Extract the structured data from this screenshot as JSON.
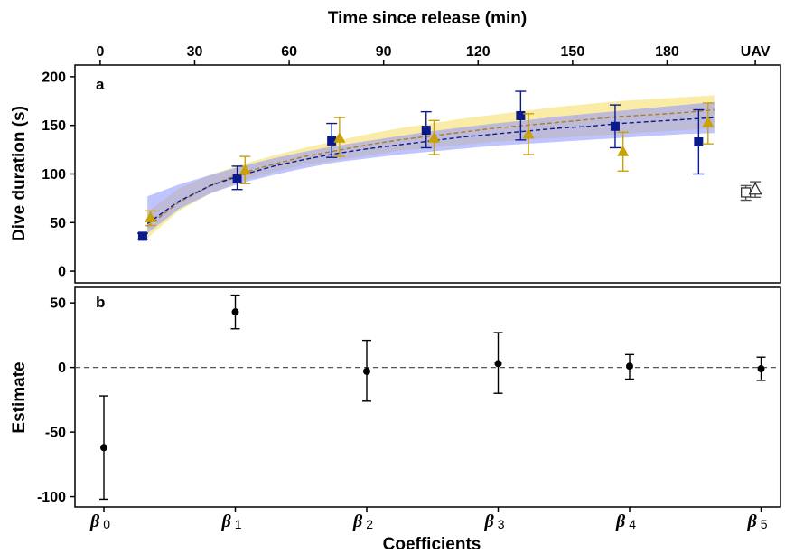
{
  "chart_data": [
    {
      "panel": "a",
      "type": "scatter",
      "top_xlabel": "Time since release (min)",
      "ylabel": "Dive duration (s)",
      "x_ticks": [
        "0",
        "30",
        "60",
        "90",
        "120",
        "150",
        "180",
        "UAV"
      ],
      "x_tick_values": [
        0,
        30,
        60,
        90,
        120,
        150,
        180,
        208
      ],
      "y_ticks": [
        "0",
        "50",
        "100",
        "150",
        "200"
      ],
      "xlim": [
        -8,
        216
      ],
      "ylim": [
        -12,
        212
      ],
      "colors": {
        "navy": "#0a1a8c",
        "gold": "#c9a20a",
        "navy_band": "#8a94ff",
        "gold_band": "#f8e58a",
        "uav": "#555555"
      },
      "series": [
        {
          "color": "navy",
          "marker": "square",
          "x": [
            13.5,
            43.5,
            73.5,
            103.5,
            133.5,
            163.5,
            190
          ],
          "y": [
            36,
            95,
            134,
            145,
            160,
            149,
            133
          ],
          "lo": [
            33,
            84,
            117,
            127,
            135,
            127,
            100
          ],
          "hi": [
            39,
            108,
            152,
            164,
            185,
            171,
            166
          ]
        },
        {
          "color": "gold",
          "marker": "triangle",
          "x": [
            16,
            46,
            76,
            106,
            136,
            166,
            193
          ],
          "y": [
            55,
            104,
            137,
            137,
            141,
            123,
            153
          ],
          "lo": [
            47,
            90,
            118,
            120,
            120,
            103,
            131
          ],
          "hi": [
            62,
            118,
            158,
            155,
            162,
            143,
            173
          ]
        },
        {
          "name": "UAV",
          "color": "uav",
          "marker": "open-square",
          "x": [
            205
          ],
          "y": [
            81
          ],
          "lo": [
            73
          ],
          "hi": [
            88
          ]
        },
        {
          "name": "UAV",
          "color": "uav",
          "marker": "open-triangle",
          "x": [
            208
          ],
          "y": [
            84
          ],
          "lo": [
            76
          ],
          "hi": [
            92
          ]
        }
      ],
      "fits": [
        {
          "color": "navy",
          "band": "navy_band",
          "x": [
            15,
            25,
            35,
            45,
            55,
            65,
            75,
            85,
            95,
            105,
            115,
            125,
            135,
            145,
            155,
            165,
            175,
            185,
            195
          ],
          "y": [
            49,
            72,
            88,
            99,
            108,
            115,
            121,
            126,
            130,
            134,
            138,
            141,
            144,
            147,
            149,
            152,
            154,
            156,
            158
          ],
          "lo": [
            39,
            64,
            80,
            91,
            99,
            106,
            112,
            116,
            120,
            123,
            126,
            129,
            131,
            133,
            135,
            137,
            139,
            141,
            142
          ],
          "hi": [
            77,
            89,
            99,
            108,
            116,
            123,
            129,
            134,
            139,
            144,
            148,
            152,
            155,
            159,
            162,
            165,
            168,
            171,
            174
          ]
        },
        {
          "color": "gold",
          "band": "gold_band",
          "x": [
            15,
            25,
            35,
            45,
            55,
            65,
            75,
            85,
            95,
            105,
            115,
            125,
            135,
            145,
            155,
            165,
            175,
            185,
            195
          ],
          "y": [
            46,
            71,
            88,
            101,
            110,
            118,
            124,
            130,
            135,
            139,
            143,
            147,
            150,
            153,
            156,
            159,
            161,
            163,
            166
          ],
          "lo": [
            34,
            62,
            80,
            93,
            102,
            109,
            114,
            119,
            124,
            127,
            130,
            133,
            135,
            137,
            139,
            141,
            143,
            145,
            147
          ],
          "hi": [
            61,
            85,
            99,
            110,
            119,
            127,
            134,
            141,
            147,
            152,
            157,
            161,
            165,
            169,
            172,
            175,
            177,
            179,
            181
          ]
        }
      ]
    },
    {
      "panel": "b",
      "type": "scatter",
      "xlabel": "Coefficients",
      "ylabel": "Estimate",
      "categories": [
        "β",
        "β",
        "β",
        "β",
        "β",
        "β"
      ],
      "category_subscripts": [
        "0",
        "1",
        "2",
        "3",
        "4",
        "5"
      ],
      "y_ticks": [
        "50",
        "0",
        "-50",
        "-100"
      ],
      "y_tick_values": [
        50,
        0,
        -50,
        -100
      ],
      "ylim": [
        -108,
        62
      ],
      "reference_line": 0,
      "values": [
        -62,
        43,
        -3,
        3,
        1,
        -1
      ],
      "lo": [
        -102,
        30,
        -26,
        -20,
        -9,
        -10
      ],
      "hi": [
        -22,
        56,
        21,
        27,
        10,
        8
      ]
    }
  ]
}
